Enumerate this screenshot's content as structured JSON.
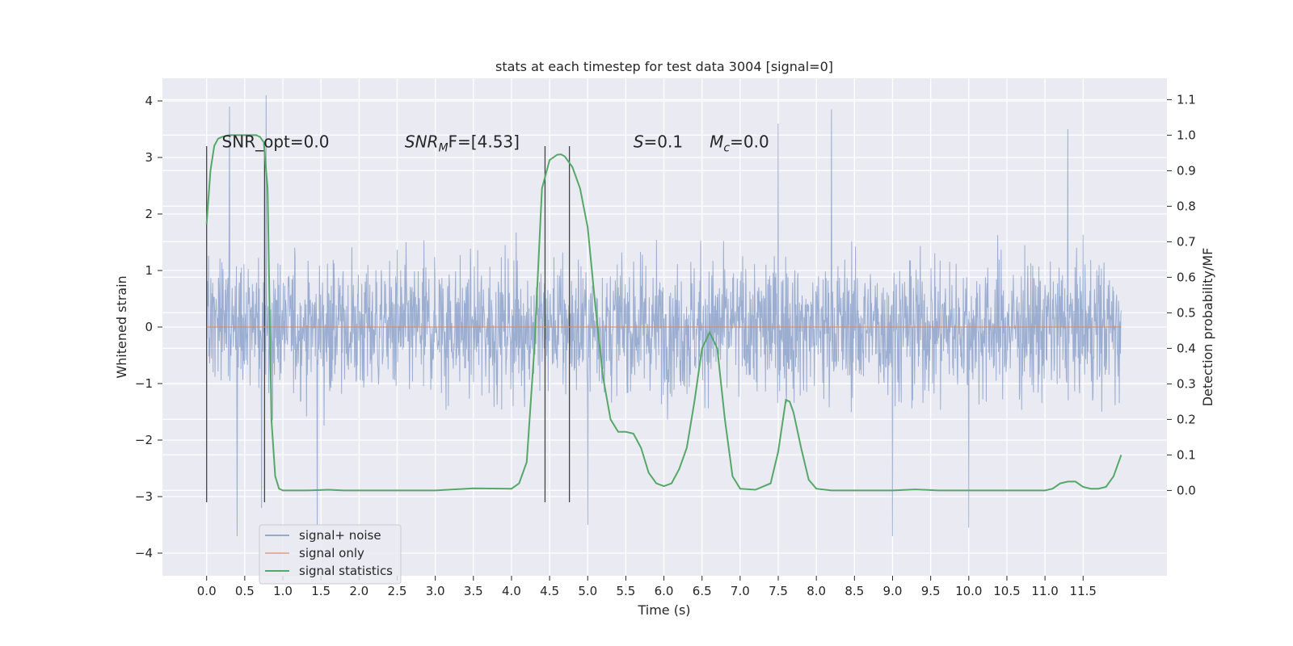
{
  "chart_data": {
    "type": "line",
    "title": "stats at each timestep for test data 3004 [signal=0]",
    "xlabel": "Time (s)",
    "ylabel": "Whitened strain",
    "y2label": "Detection probability/MF",
    "xlim": [
      -0.58,
      12.6
    ],
    "ylim": [
      -4.4,
      4.4
    ],
    "y2lim": [
      -0.24,
      1.16
    ],
    "xticks": [
      0.0,
      0.5,
      1.0,
      1.5,
      2.0,
      2.5,
      3.0,
      3.5,
      4.0,
      4.5,
      5.0,
      5.5,
      6.0,
      6.5,
      7.0,
      7.5,
      8.0,
      8.5,
      9.0,
      9.5,
      10.0,
      10.5,
      11.0,
      11.5
    ],
    "xtick_labels": [
      "0.0",
      "0.5",
      "1.0",
      "1.5",
      "2.0",
      "2.5",
      "3.0",
      "3.5",
      "4.0",
      "4.5",
      "5.0",
      "5.5",
      "6.0",
      "6.5",
      "7.0",
      "7.5",
      "8.0",
      "8.5",
      "9.0",
      "9.5",
      "10.0",
      "10.5",
      "11.0",
      "11.5"
    ],
    "yticks": [
      -4,
      -3,
      -2,
      -1,
      0,
      1,
      2,
      3,
      4
    ],
    "ytick_labels": [
      "−4",
      "−3",
      "−2",
      "−1",
      "0",
      "1",
      "2",
      "3",
      "4"
    ],
    "y2ticks": [
      0.0,
      0.1,
      0.2,
      0.3,
      0.4,
      0.5,
      0.6,
      0.7,
      0.8,
      0.9,
      1.0,
      1.1
    ],
    "y2tick_labels": [
      "0.0",
      "0.1",
      "0.2",
      "0.3",
      "0.4",
      "0.5",
      "0.6",
      "0.7",
      "0.8",
      "0.9",
      "1.0",
      "1.1"
    ],
    "grid": true,
    "legend_position": "lower-left",
    "annotations": [
      {
        "text": "SNR_opt=0.0",
        "x": 0.2,
        "y": 3.18
      },
      {
        "text": "SNR",
        "sub": "M",
        "rest": "F=[4.53]",
        "italic_prefix": true,
        "x": 2.6,
        "y": 3.18
      },
      {
        "text": "S",
        "rest": "=0.1",
        "italic_prefix": true,
        "x": 5.6,
        "y": 3.18
      },
      {
        "text": "M",
        "sub": "c",
        "rest": "=0.0",
        "italic_prefix": true,
        "x": 6.6,
        "y": 3.18
      }
    ],
    "vlines": [
      {
        "x": 0.0,
        "ymin": -3.1,
        "ymax": 3.2
      },
      {
        "x": 0.76,
        "ymin": -3.1,
        "ymax": 3.2
      },
      {
        "x": 4.44,
        "ymin": -3.1,
        "ymax": 3.2
      },
      {
        "x": 4.76,
        "ymin": -3.1,
        "ymax": 3.2
      }
    ],
    "series": [
      {
        "name": "signal+ noise",
        "color": "#4c72b0",
        "axis": "left",
        "x_range": [
          0.0,
          12.0
        ],
        "y_range_typical": [
          -2.5,
          2.5
        ],
        "y_peaks": [
          {
            "x": 0.3,
            "y": 3.9
          },
          {
            "x": 0.78,
            "y": 4.1
          },
          {
            "x": 0.4,
            "y": -3.7
          },
          {
            "x": 0.72,
            "y": -3.2
          },
          {
            "x": 1.45,
            "y": -3.5
          },
          {
            "x": 5.0,
            "y": -3.5
          },
          {
            "x": 8.2,
            "y": 3.85
          },
          {
            "x": 9.0,
            "y": -3.7
          },
          {
            "x": 10.0,
            "y": -3.55
          },
          {
            "x": 11.3,
            "y": 3.5
          },
          {
            "x": 7.5,
            "y": 3.6
          }
        ]
      },
      {
        "name": "signal only",
        "color": "#dd8452",
        "axis": "left",
        "x": [
          0.0,
          12.0
        ],
        "y": [
          0.0,
          0.0
        ]
      },
      {
        "name": "signal statistics",
        "color": "#55a868",
        "axis": "right",
        "x": [
          0.0,
          0.05,
          0.1,
          0.15,
          0.2,
          0.3,
          0.4,
          0.5,
          0.6,
          0.65,
          0.7,
          0.75,
          0.8,
          0.85,
          0.9,
          0.95,
          1.0,
          1.1,
          1.3,
          1.6,
          1.8,
          2.2,
          3.0,
          3.5,
          4.0,
          4.1,
          4.2,
          4.3,
          4.4,
          4.5,
          4.6,
          4.65,
          4.7,
          4.8,
          4.9,
          5.0,
          5.1,
          5.2,
          5.3,
          5.4,
          5.5,
          5.6,
          5.7,
          5.8,
          5.9,
          6.0,
          6.1,
          6.2,
          6.3,
          6.4,
          6.5,
          6.6,
          6.7,
          6.8,
          6.9,
          7.0,
          7.2,
          7.4,
          7.5,
          7.6,
          7.65,
          7.7,
          7.8,
          7.9,
          8.0,
          8.2,
          9.0,
          9.3,
          9.6,
          10.0,
          10.5,
          11.0,
          11.1,
          11.2,
          11.3,
          11.4,
          11.5,
          11.6,
          11.7,
          11.8,
          11.9,
          11.95,
          12.0
        ],
        "y": [
          0.75,
          0.9,
          0.97,
          0.99,
          0.995,
          1.0,
          1.0,
          1.0,
          1.0,
          1.0,
          0.995,
          0.98,
          0.85,
          0.2,
          0.04,
          0.005,
          0.0,
          0.0,
          0.0,
          0.002,
          0.0,
          0.0,
          0.0,
          0.006,
          0.005,
          0.02,
          0.08,
          0.4,
          0.85,
          0.93,
          0.945,
          0.946,
          0.94,
          0.91,
          0.85,
          0.74,
          0.52,
          0.32,
          0.2,
          0.165,
          0.165,
          0.16,
          0.12,
          0.05,
          0.02,
          0.012,
          0.02,
          0.06,
          0.12,
          0.25,
          0.4,
          0.445,
          0.4,
          0.2,
          0.04,
          0.005,
          0.002,
          0.02,
          0.11,
          0.255,
          0.25,
          0.22,
          0.12,
          0.03,
          0.005,
          0.0,
          0.0,
          0.003,
          0.0,
          0.0,
          0.0,
          0.0,
          0.005,
          0.02,
          0.025,
          0.025,
          0.01,
          0.005,
          0.005,
          0.01,
          0.04,
          0.07,
          0.1
        ]
      }
    ]
  }
}
